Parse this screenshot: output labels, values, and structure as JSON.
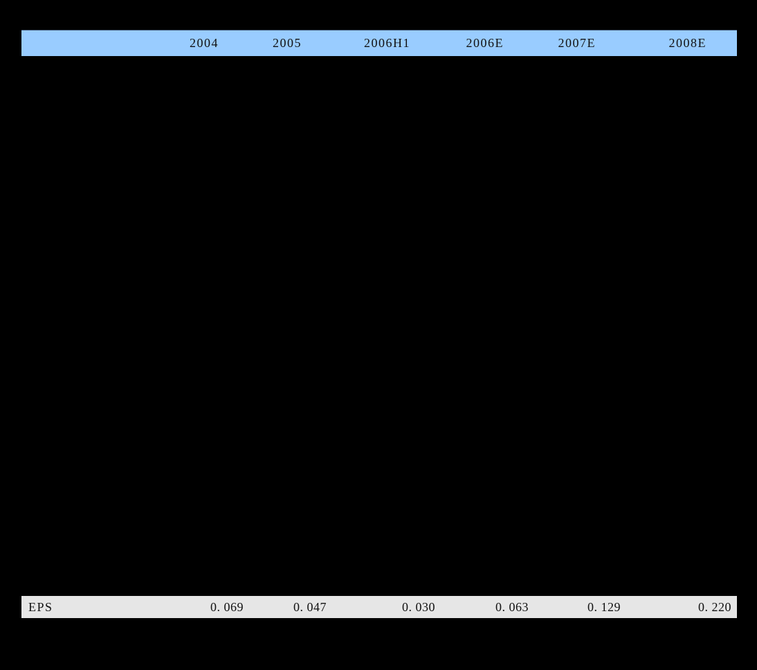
{
  "colors": {
    "page_bg": "#000000",
    "header_bg": "#99CCFF",
    "eps_row_bg": "#E6E6E6",
    "text": "#111111"
  },
  "table": {
    "columns": [
      "2004",
      "2005",
      "2006H1",
      "2006E",
      "2007E",
      "2008E"
    ],
    "rows": [
      {
        "label": "EPS",
        "values": [
          "0. 069",
          "0. 047",
          "0. 030",
          "0. 063",
          "0. 129",
          "0. 220"
        ]
      }
    ]
  }
}
